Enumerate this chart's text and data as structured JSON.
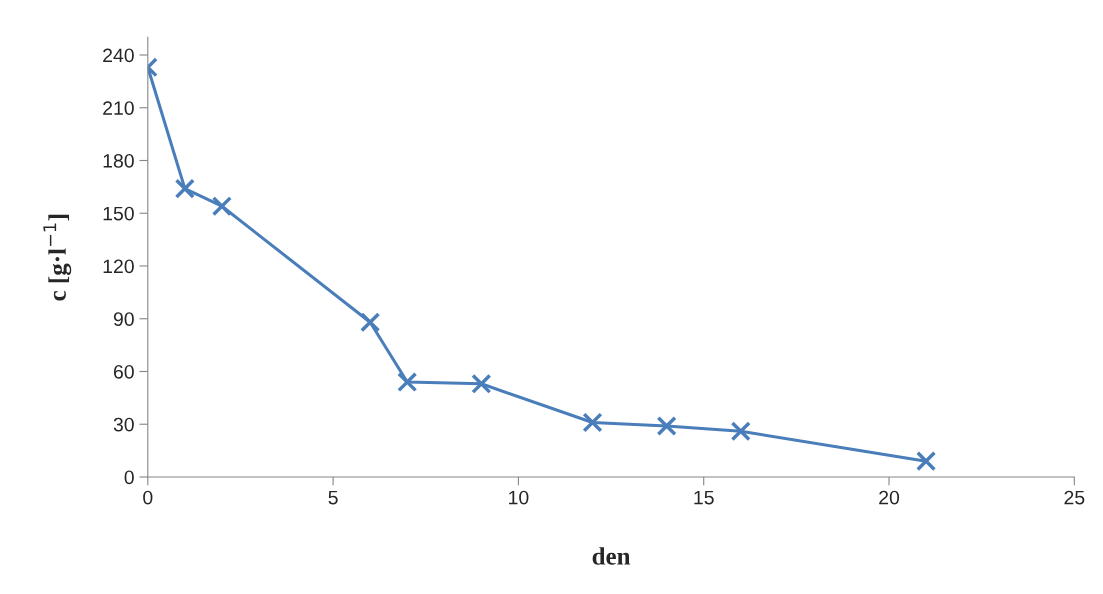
{
  "chart_data": {
    "type": "line",
    "xlabel": "den",
    "ylabel": "c [g·l$^{−1}$]",
    "x": [
      0,
      1,
      2,
      6,
      7,
      9,
      12,
      14,
      16,
      21
    ],
    "series": [
      {
        "color": "#4a7ebb",
        "values": [
          233,
          164,
          154,
          88,
          54,
          53,
          31,
          29,
          26,
          9
        ]
      }
    ],
    "xlim": [
      0,
      25
    ],
    "xticks": [
      0,
      5,
      10,
      15,
      20,
      25
    ],
    "ylim": [
      0,
      250
    ],
    "yticks": [
      0,
      30,
      60,
      90,
      120,
      150,
      180,
      210,
      240
    ],
    "marker": "cross",
    "line_style": "solid",
    "grid": false,
    "legend": false
  }
}
